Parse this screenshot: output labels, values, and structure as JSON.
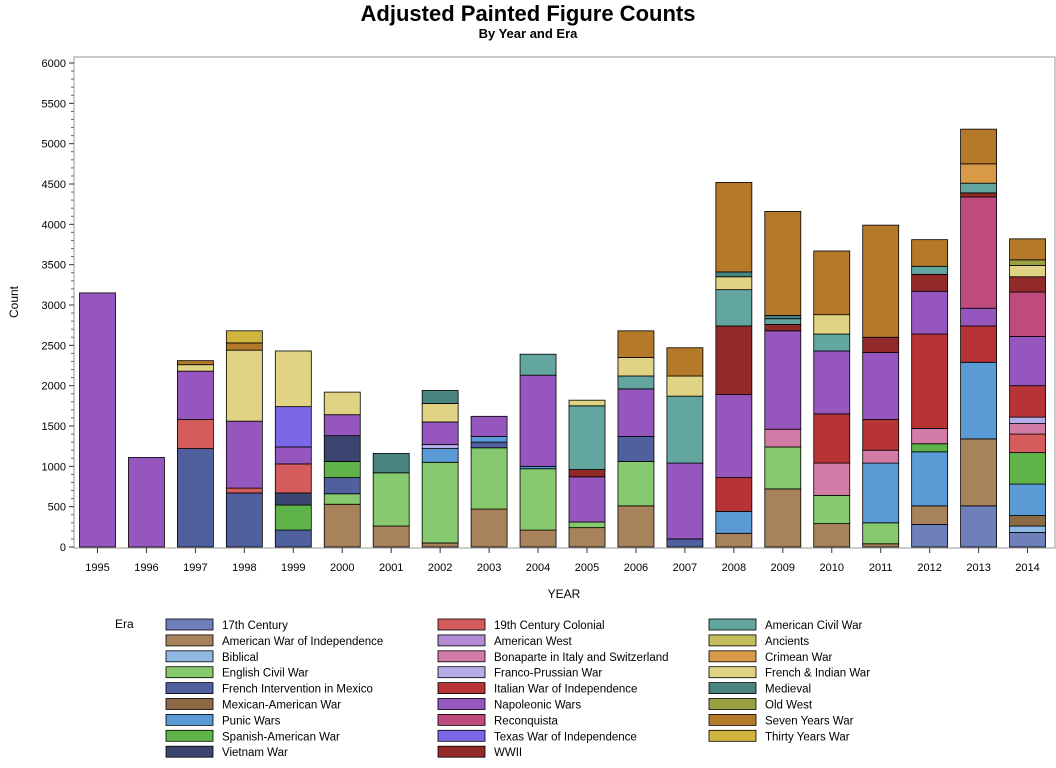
{
  "chart_data": {
    "type": "bar",
    "stacked": true,
    "title": "Adjusted Painted Figure Counts",
    "subtitle": "By Year and Era",
    "xlabel": "YEAR",
    "ylabel": "Count",
    "ylim": [
      0,
      6000
    ],
    "yticks": [
      0,
      500,
      1000,
      1500,
      2000,
      2500,
      3000,
      3500,
      4000,
      4500,
      5000,
      5500,
      6000
    ],
    "legend_title": "Era",
    "legend_position": "bottom",
    "categories": [
      "1995",
      "1996",
      "1997",
      "1998",
      "1999",
      "2000",
      "2001",
      "2002",
      "2003",
      "2004",
      "2005",
      "2006",
      "2007",
      "2008",
      "2009",
      "2010",
      "2011",
      "2012",
      "2013",
      "2014"
    ],
    "series": [
      {
        "name": "17th Century",
        "color": "#6f7fba",
        "values": [
          0,
          0,
          0,
          0,
          0,
          0,
          0,
          0,
          0,
          0,
          0,
          0,
          0,
          0,
          0,
          0,
          0,
          280,
          510,
          180
        ]
      },
      {
        "name": "American War of Independence",
        "color": "#a8825a",
        "values": [
          0,
          0,
          0,
          0,
          0,
          530,
          260,
          50,
          470,
          210,
          240,
          510,
          0,
          170,
          720,
          290,
          40,
          230,
          830,
          0
        ]
      },
      {
        "name": "Biblical",
        "color": "#8fb8e2",
        "values": [
          0,
          0,
          0,
          0,
          0,
          0,
          0,
          0,
          0,
          0,
          0,
          0,
          0,
          0,
          0,
          0,
          0,
          0,
          0,
          80
        ]
      },
      {
        "name": "English Civil War",
        "color": "#86c96e",
        "values": [
          0,
          0,
          0,
          0,
          0,
          130,
          660,
          1000,
          760,
          760,
          70,
          550,
          0,
          0,
          520,
          350,
          260,
          0,
          0,
          0
        ]
      },
      {
        "name": "French Intervention in Mexico",
        "color": "#50609e",
        "values": [
          0,
          0,
          1220,
          670,
          210,
          200,
          0,
          0,
          70,
          0,
          0,
          310,
          100,
          0,
          0,
          0,
          0,
          0,
          0,
          0
        ]
      },
      {
        "name": "Mexican-American War",
        "color": "#8b6a45",
        "values": [
          0,
          0,
          0,
          0,
          0,
          0,
          0,
          0,
          0,
          0,
          0,
          0,
          0,
          0,
          0,
          0,
          0,
          0,
          0,
          130
        ]
      },
      {
        "name": "Punic Wars",
        "color": "#5b9bd5",
        "values": [
          0,
          0,
          0,
          0,
          0,
          0,
          0,
          170,
          70,
          30,
          0,
          0,
          0,
          270,
          0,
          0,
          740,
          670,
          950,
          390
        ]
      },
      {
        "name": "Spanish-American War",
        "color": "#5fb349",
        "values": [
          0,
          0,
          0,
          0,
          310,
          200,
          0,
          0,
          0,
          0,
          0,
          0,
          0,
          0,
          0,
          0,
          0,
          100,
          0,
          390
        ]
      },
      {
        "name": "Vietnam War",
        "color": "#3b4670",
        "values": [
          0,
          0,
          0,
          0,
          150,
          320,
          0,
          0,
          0,
          0,
          0,
          0,
          0,
          0,
          0,
          0,
          0,
          0,
          0,
          0
        ]
      },
      {
        "name": "19th Century Colonial",
        "color": "#d45c5c",
        "values": [
          0,
          0,
          360,
          60,
          360,
          0,
          0,
          0,
          0,
          0,
          0,
          0,
          0,
          0,
          0,
          0,
          0,
          0,
          0,
          230
        ]
      },
      {
        "name": "American West",
        "color": "#b48ad3",
        "values": [
          0,
          0,
          0,
          0,
          0,
          0,
          0,
          0,
          0,
          0,
          0,
          0,
          0,
          0,
          0,
          0,
          0,
          0,
          0,
          0
        ]
      },
      {
        "name": "Bonaparte in Italy and Switzerland",
        "color": "#d27ba6",
        "values": [
          0,
          0,
          0,
          0,
          0,
          0,
          0,
          0,
          0,
          0,
          0,
          0,
          0,
          0,
          220,
          400,
          160,
          190,
          0,
          130
        ]
      },
      {
        "name": "Franco-Prussian War",
        "color": "#b4aee8",
        "values": [
          0,
          0,
          0,
          0,
          0,
          0,
          0,
          50,
          0,
          0,
          0,
          0,
          0,
          0,
          0,
          0,
          0,
          0,
          0,
          80
        ]
      },
      {
        "name": "Italian War of Independence",
        "color": "#b83336",
        "values": [
          0,
          0,
          0,
          0,
          0,
          0,
          0,
          0,
          0,
          0,
          0,
          0,
          0,
          420,
          0,
          610,
          380,
          1170,
          450,
          390
        ]
      },
      {
        "name": "Napoleonic Wars",
        "color": "#9556bd",
        "values": [
          3150,
          1110,
          600,
          830,
          210,
          260,
          0,
          280,
          250,
          1130,
          560,
          590,
          940,
          1030,
          1220,
          780,
          830,
          530,
          220,
          610
        ]
      },
      {
        "name": "Reconquista",
        "color": "#bf4a7e",
        "values": [
          0,
          0,
          0,
          0,
          0,
          0,
          0,
          0,
          0,
          0,
          0,
          0,
          0,
          0,
          0,
          0,
          0,
          0,
          1380,
          550
        ]
      },
      {
        "name": "Texas War of Independence",
        "color": "#7b68e8",
        "values": [
          0,
          0,
          0,
          0,
          500,
          0,
          0,
          0,
          0,
          0,
          0,
          0,
          0,
          0,
          0,
          0,
          0,
          0,
          0,
          0
        ]
      },
      {
        "name": "WWII",
        "color": "#932a2a",
        "values": [
          0,
          0,
          0,
          0,
          0,
          0,
          0,
          0,
          0,
          0,
          90,
          0,
          0,
          850,
          80,
          0,
          190,
          210,
          50,
          190
        ]
      },
      {
        "name": "American Civil War",
        "color": "#63a6a0",
        "values": [
          0,
          0,
          0,
          0,
          0,
          0,
          0,
          0,
          0,
          260,
          790,
          160,
          830,
          450,
          70,
          210,
          0,
          100,
          120,
          0
        ]
      },
      {
        "name": "Ancients",
        "color": "#c4bd5d",
        "values": [
          0,
          0,
          0,
          0,
          0,
          0,
          0,
          0,
          0,
          0,
          0,
          0,
          0,
          0,
          0,
          0,
          0,
          0,
          0,
          0
        ]
      },
      {
        "name": "Crimean War",
        "color": "#d99a48",
        "values": [
          0,
          0,
          0,
          0,
          0,
          0,
          0,
          0,
          0,
          0,
          0,
          0,
          0,
          0,
          0,
          0,
          0,
          0,
          240,
          0
        ]
      },
      {
        "name": "French & Indian War",
        "color": "#e0d383",
        "values": [
          0,
          0,
          80,
          880,
          690,
          280,
          0,
          230,
          0,
          0,
          70,
          230,
          250,
          160,
          0,
          240,
          0,
          0,
          0,
          140
        ]
      },
      {
        "name": "Medieval",
        "color": "#4a8480",
        "values": [
          0,
          0,
          0,
          0,
          0,
          0,
          240,
          160,
          0,
          0,
          0,
          0,
          0,
          60,
          40,
          0,
          0,
          0,
          0,
          0
        ]
      },
      {
        "name": "Old West",
        "color": "#9aa040",
        "values": [
          0,
          0,
          0,
          0,
          0,
          0,
          0,
          0,
          0,
          0,
          0,
          0,
          0,
          0,
          0,
          0,
          0,
          0,
          0,
          70
        ]
      },
      {
        "name": "Seven Years War",
        "color": "#b5792a",
        "values": [
          0,
          0,
          50,
          90,
          0,
          0,
          0,
          0,
          0,
          0,
          0,
          330,
          350,
          1110,
          1290,
          790,
          1390,
          330,
          430,
          260
        ]
      },
      {
        "name": "Thirty Years War",
        "color": "#d0b43e",
        "values": [
          0,
          0,
          0,
          150,
          0,
          0,
          0,
          0,
          0,
          0,
          0,
          0,
          0,
          0,
          0,
          0,
          0,
          0,
          0,
          0
        ]
      }
    ],
    "legend_order": [
      "17th Century",
      "19th Century Colonial",
      "American Civil War",
      "American War of Independence",
      "American West",
      "Ancients",
      "Biblical",
      "Bonaparte in Italy and Switzerland",
      "Crimean War",
      "English Civil War",
      "Franco-Prussian War",
      "French & Indian War",
      "French Intervention in Mexico",
      "Italian War of Independence",
      "Medieval",
      "Mexican-American War",
      "Napoleonic Wars",
      "Old West",
      "Punic Wars",
      "Reconquista",
      "Seven Years War",
      "Spanish-American War",
      "Texas War of Independence",
      "Thirty Years War",
      "Vietnam War",
      "WWII"
    ]
  }
}
